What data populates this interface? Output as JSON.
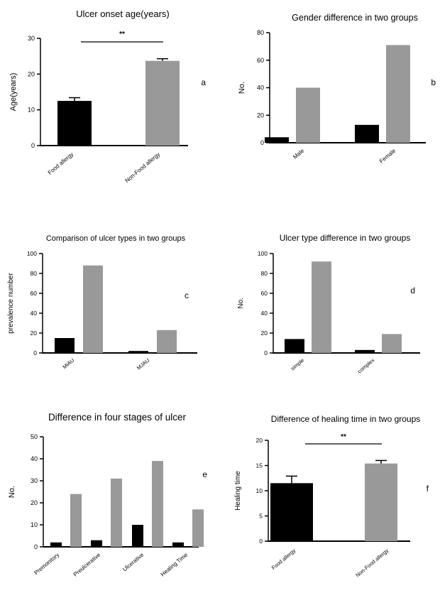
{
  "colors": {
    "group_a": "#000000",
    "group_b": "#999999",
    "axis": "#000000"
  },
  "chart_data": [
    {
      "type": "bar",
      "title": "Ulcer onset age(years)",
      "panel_label": "a",
      "ylabel": "Age(years)",
      "categories": [
        "Food allergy",
        "Non-Food allergy"
      ],
      "values": [
        12.5,
        23.7
      ],
      "errors": [
        0.9,
        0.6
      ],
      "ylim": [
        0,
        30
      ],
      "yticks": [
        0,
        10,
        20,
        30
      ],
      "significance": "**"
    },
    {
      "type": "bar",
      "title": "Gender difference in two groups",
      "panel_label": "b",
      "ylabel": "No.",
      "categories": [
        "Male",
        "Female"
      ],
      "series": [
        {
          "values": [
            4,
            13
          ]
        },
        {
          "values": [
            40,
            71
          ]
        }
      ],
      "ylim": [
        0,
        80
      ],
      "yticks": [
        0,
        20,
        40,
        60,
        80
      ]
    },
    {
      "type": "bar",
      "title": "Comparison of ulcer types in two groups",
      "panel_label": "c",
      "ylabel": "prevalence number",
      "categories": [
        "MiAU",
        "MJAU"
      ],
      "series": [
        {
          "values": [
            15,
            2
          ]
        },
        {
          "values": [
            88,
            23
          ]
        }
      ],
      "ylim": [
        0,
        100
      ],
      "yticks": [
        0,
        20,
        40,
        60,
        80,
        100
      ]
    },
    {
      "type": "bar",
      "title": "Ulcer type difference in two groups",
      "panel_label": "d",
      "ylabel": "No.",
      "categories": [
        "simple",
        "complex"
      ],
      "series": [
        {
          "values": [
            14,
            3
          ]
        },
        {
          "values": [
            92,
            19
          ]
        }
      ],
      "ylim": [
        0,
        100
      ],
      "yticks": [
        0,
        20,
        40,
        60,
        80,
        100
      ]
    },
    {
      "type": "bar",
      "title": "Difference in four stages of ulcer",
      "panel_label": "e",
      "ylabel": "No.",
      "categories": [
        "Premonitory",
        "Preulcerative",
        "Ulcerative",
        "Healing Time"
      ],
      "series": [
        {
          "values": [
            2,
            3,
            10,
            2
          ]
        },
        {
          "values": [
            24,
            31,
            39,
            17
          ]
        }
      ],
      "ylim": [
        0,
        50
      ],
      "yticks": [
        0,
        10,
        20,
        30,
        40,
        50
      ]
    },
    {
      "type": "bar",
      "title": "Difference of healing time in two groups",
      "panel_label": "f",
      "ylabel": "Healing time",
      "categories": [
        "Food allergy",
        "Non-Food allergy"
      ],
      "values": [
        11.5,
        15.4
      ],
      "errors": [
        1.4,
        0.6
      ],
      "ylim": [
        0,
        20
      ],
      "yticks": [
        0,
        5,
        10,
        15,
        20
      ],
      "significance": "**"
    }
  ]
}
